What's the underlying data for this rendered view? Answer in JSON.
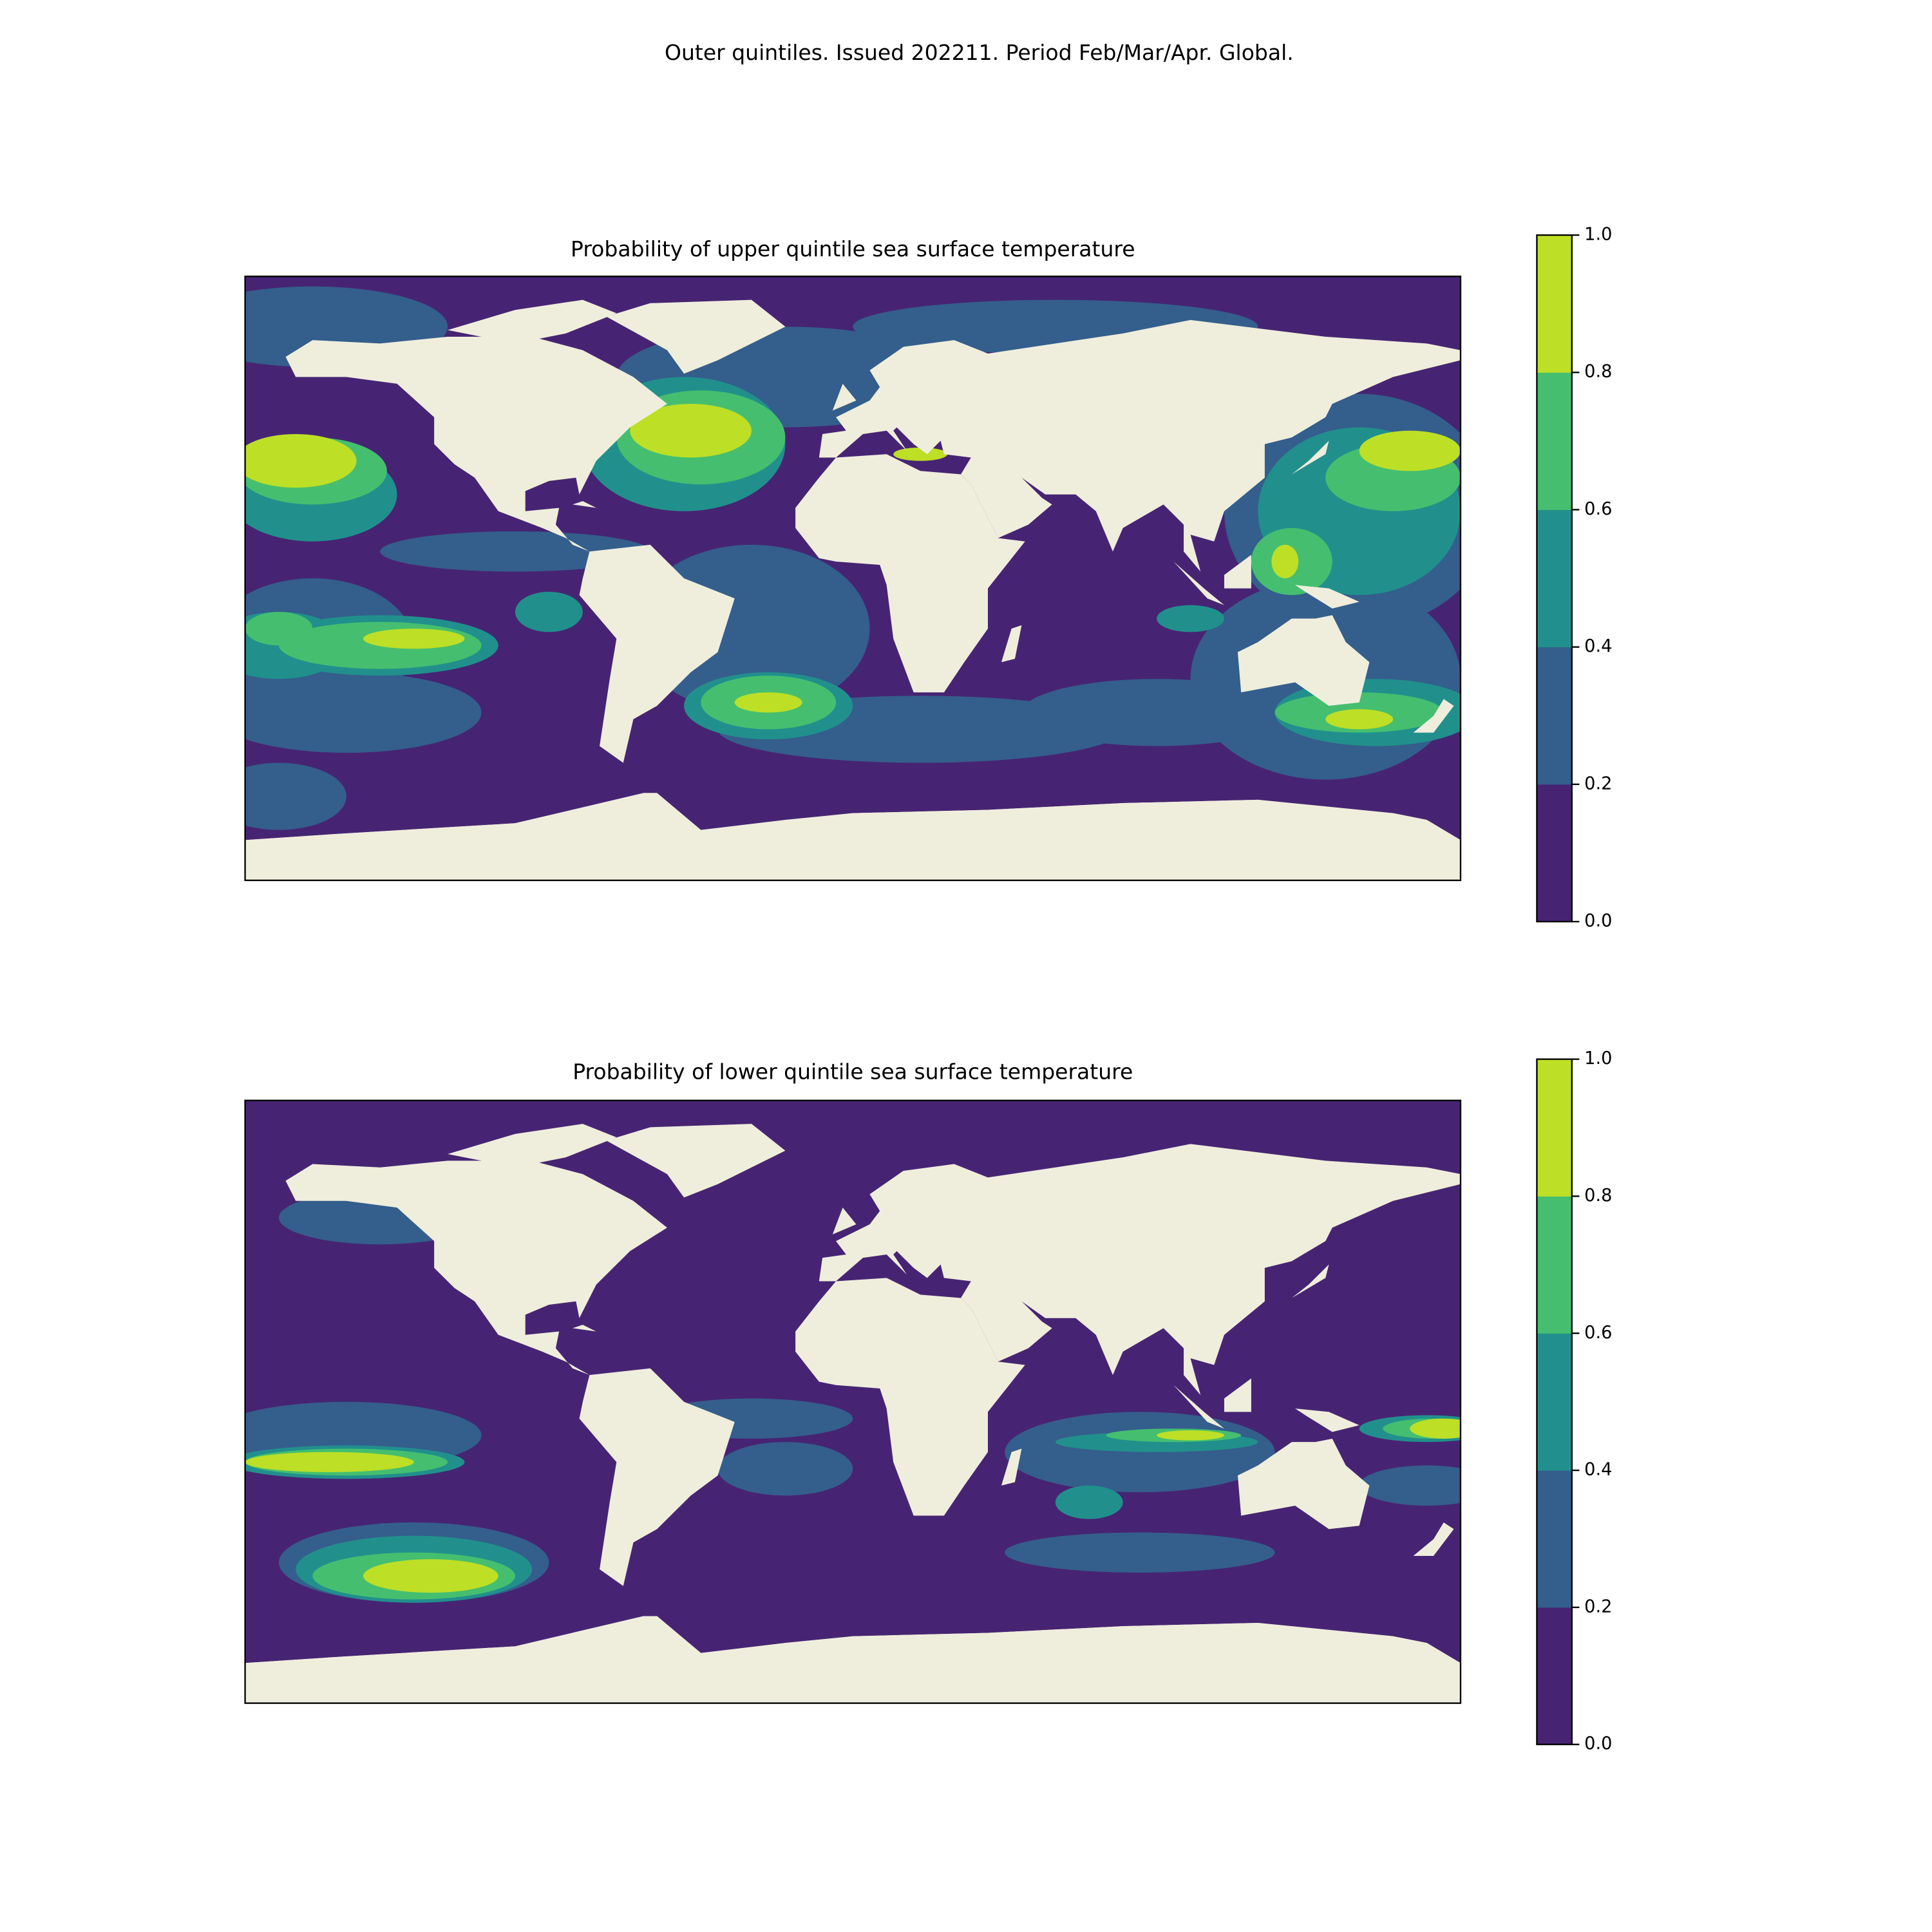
{
  "title": "Outer quintiles. Issued 202211. Period Feb/Mar/Apr. Global.",
  "chart_data": [
    {
      "type": "map",
      "title": "Probability of upper quintile sea surface temperature",
      "colorbar": {
        "lim": [
          0,
          1
        ],
        "ticks": [
          {
            "value": 0,
            "label": "0.0"
          },
          0.2,
          0.4,
          0.6,
          0.8,
          {
            "value": 1,
            "label": "1.0"
          }
        ],
        "colors": [
          "#472473",
          "#345e8c",
          "#21908c",
          "#45bf6f",
          "#bddf26"
        ]
      }
    },
    {
      "type": "map",
      "title": "Probability of lower quintile sea surface temperature",
      "colorbar": {
        "lim": [
          0,
          1
        ],
        "ticks": [
          {
            "value": 0,
            "label": "0.0"
          },
          0.2,
          0.4,
          0.6,
          0.8,
          {
            "value": 1,
            "label": "1.0"
          }
        ],
        "colors": [
          "#472473",
          "#345e8c",
          "#21908c",
          "#45bf6f",
          "#bddf26"
        ]
      }
    }
  ]
}
